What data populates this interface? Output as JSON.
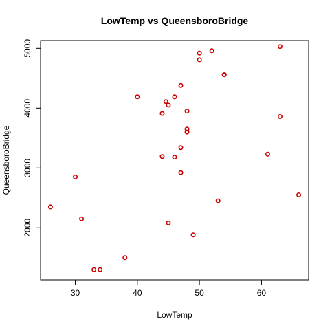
{
  "chart_data": {
    "type": "scatter",
    "title": "LowTemp vs QueensboroBridge",
    "xlabel": "LowTemp",
    "ylabel": "QueensboroBridge",
    "xlim": [
      24.4,
      67.6
    ],
    "ylim": [
      1130,
      5130
    ],
    "xticks": [
      30,
      40,
      50,
      60
    ],
    "yticks": [
      2000,
      3000,
      4000,
      5000
    ],
    "grid": false,
    "point_color": "#cc0000",
    "x": [
      26,
      30,
      31,
      33,
      34,
      38,
      40,
      44,
      44,
      44.6,
      45,
      45,
      46,
      46,
      47,
      47,
      47,
      48,
      48,
      48,
      49,
      50,
      50,
      52,
      53,
      54,
      54,
      61,
      63,
      63,
      66
    ],
    "y": [
      2350,
      2850,
      2150,
      1300,
      1300,
      1500,
      4190,
      3910,
      3190,
      4110,
      4050,
      2080,
      4190,
      3180,
      4380,
      3340,
      2920,
      3950,
      3650,
      3600,
      1880,
      4920,
      4810,
      4960,
      2450,
      4560,
      4560,
      3230,
      5030,
      3860,
      2550
    ]
  }
}
